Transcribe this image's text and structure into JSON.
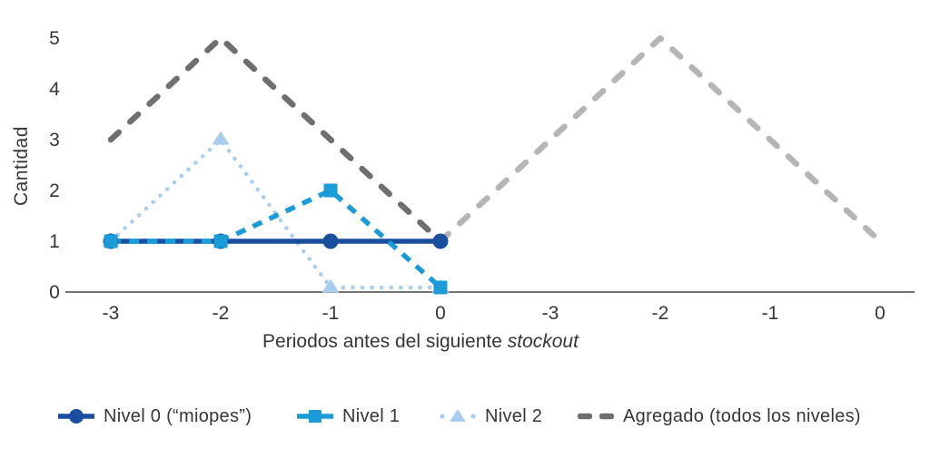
{
  "figure": {
    "background": "#FFFFFF"
  },
  "chart_data": {
    "type": "line",
    "title": "",
    "ylabel": "Cantidad",
    "xlabel_regular": "Periodos antes del siguiente ",
    "xlabel_italic": "stockout",
    "x_tick_labels": [
      "-3",
      "-2",
      "-1",
      "0",
      "-3",
      "-2",
      "-1",
      "0"
    ],
    "y_tick_labels": [
      "0",
      "1",
      "2",
      "3",
      "4",
      "5"
    ],
    "ylim": [
      0,
      5
    ],
    "grid": false,
    "legend_position": "bottom",
    "axis_color": "#464646",
    "text_color": "#363636",
    "series": [
      {
        "name": "Nivel 0 (“miopes”)",
        "x": [
          0,
          1,
          2,
          3
        ],
        "values": [
          1,
          1,
          1,
          1
        ],
        "color": "#1A4E9E",
        "line_style": "solid",
        "marker": "circle",
        "in_legend": true
      },
      {
        "name": "Nivel 1",
        "x": [
          0,
          1,
          2,
          3
        ],
        "values": [
          1,
          1,
          2,
          0
        ],
        "color": "#1B9CD8",
        "line_style": "dashed",
        "marker": "square",
        "in_legend": true
      },
      {
        "name": "Nivel 2",
        "x": [
          0,
          1,
          2,
          3
        ],
        "values": [
          1,
          3,
          0,
          0
        ],
        "color": "#A8CDEE",
        "line_style": "dotted",
        "marker": "triangle",
        "in_legend": true
      },
      {
        "name": "Agregado (todos los niveles)",
        "x": [
          0,
          1,
          2,
          3
        ],
        "values": [
          3,
          5,
          3,
          1
        ],
        "color": "#6F6F6F",
        "line_style": "dashed-large",
        "marker": "none",
        "in_legend": true
      },
      {
        "name": "Agregado (todos los niveles)",
        "variant": "light-continuation",
        "x": [
          3,
          4,
          5,
          6,
          7
        ],
        "values": [
          1,
          3,
          5,
          3,
          1
        ],
        "color": "#B5B5B5",
        "line_style": "dashed-large",
        "marker": "none",
        "in_legend": false
      }
    ]
  }
}
